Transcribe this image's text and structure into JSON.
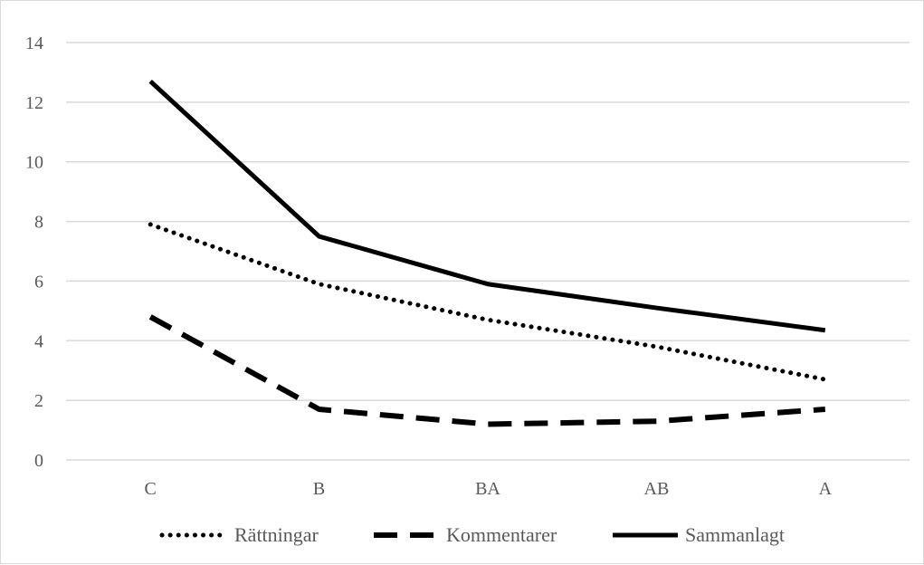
{
  "chart_data": {
    "type": "line",
    "title": "",
    "xlabel": "",
    "ylabel": "",
    "categories": [
      "C",
      "B",
      "BA",
      "AB",
      "A"
    ],
    "ylim": [
      0,
      14
    ],
    "yticks": [
      0,
      2,
      4,
      6,
      8,
      10,
      12,
      14
    ],
    "grid": true,
    "legend_position": "bottom",
    "series": [
      {
        "name": "Rättningar",
        "values": [
          7.9,
          5.9,
          4.7,
          3.8,
          2.7
        ],
        "style": "dotted",
        "color": "#000000"
      },
      {
        "name": "Kommentarer",
        "values": [
          4.8,
          1.7,
          1.2,
          1.3,
          1.7
        ],
        "style": "dashed",
        "color": "#000000"
      },
      {
        "name": "Sammanlagt",
        "values": [
          12.7,
          7.5,
          5.9,
          5.1,
          4.35
        ],
        "style": "solid",
        "color": "#000000"
      }
    ]
  }
}
